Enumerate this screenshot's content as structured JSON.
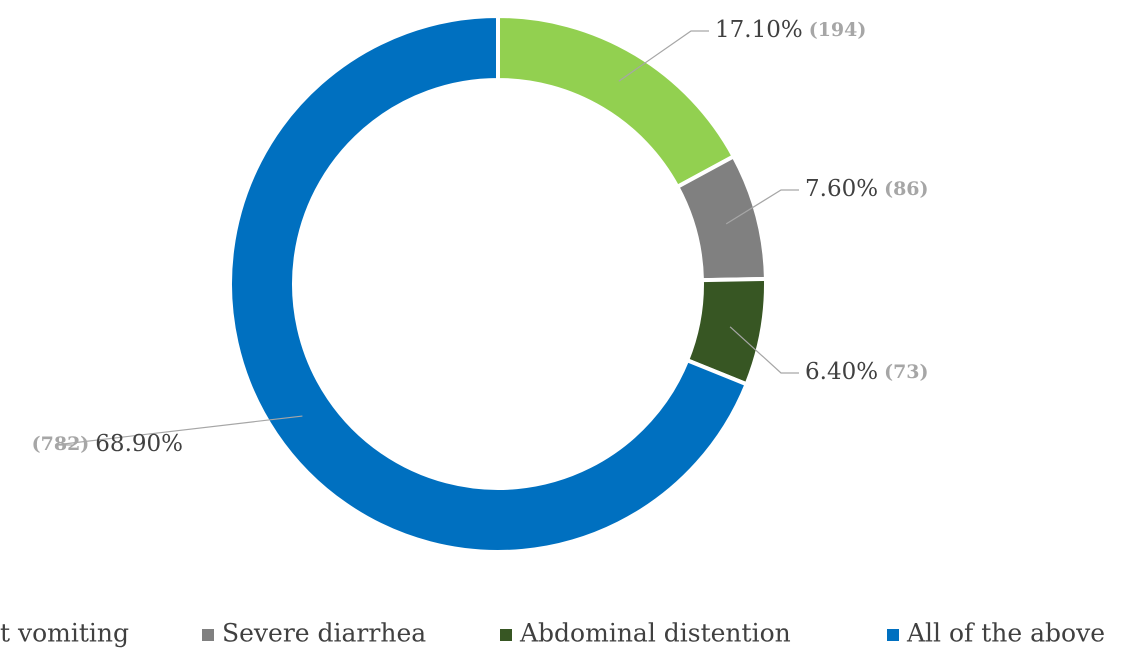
{
  "chart_data": {
    "type": "pie",
    "categories": [
      "t vomiting",
      "Severe diarrhea",
      "Abdominal distention",
      "All of the above"
    ],
    "values": [
      17.1,
      7.6,
      6.4,
      68.9
    ],
    "value_labels": [
      "17.10%",
      "7.60%",
      "6.40%",
      "68.90%"
    ],
    "counts": [
      194,
      86,
      73,
      782
    ],
    "count_labels": [
      "(194)",
      "(86)",
      "(73)",
      "(782)"
    ],
    "colors": [
      "#92d050",
      "#808080",
      "#375623",
      "#0070c0"
    ],
    "donut": true,
    "legend": "bottom"
  }
}
